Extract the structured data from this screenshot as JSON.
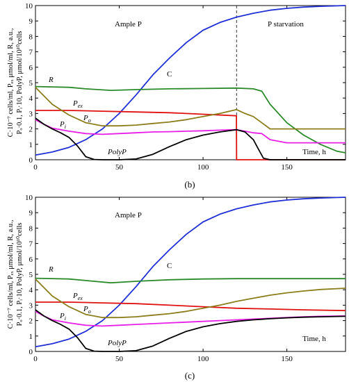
{
  "chart_data": [
    {
      "type": "line",
      "caption": "(b)",
      "ylabel_line1": "C·10⁻⁷ cells/ml, Pₑₓ μmol/ml, R, a.u.,",
      "ylabel_line2": "Pₒ·0.1, Pᵢ·10, PolyP, μmol/10¹⁰cells",
      "xlabel": "Time, h",
      "xlim": [
        0,
        185
      ],
      "ylim": [
        0,
        10
      ],
      "x_ticks": [
        0,
        50,
        100,
        150
      ],
      "y_ticks": [
        0,
        1,
        2,
        3,
        4,
        5,
        6,
        7,
        8,
        9,
        10
      ],
      "annotations": {
        "left": "Ample P",
        "right": "P starvation"
      },
      "switch_time": 120,
      "series": [
        {
          "name": "C",
          "color": "#1f2fd6",
          "x": [
            0,
            10,
            20,
            30,
            40,
            50,
            60,
            70,
            80,
            90,
            100,
            110,
            120,
            130,
            140,
            150,
            160,
            170,
            180,
            185
          ],
          "y": [
            0.3,
            0.5,
            0.8,
            1.3,
            2.0,
            3.0,
            4.2,
            5.5,
            6.6,
            7.6,
            8.4,
            8.9,
            9.25,
            9.5,
            9.7,
            9.82,
            9.9,
            9.95,
            9.98,
            10.0
          ]
        },
        {
          "name": "R",
          "color": "#2a8a2a",
          "x": [
            0,
            20,
            30,
            45,
            60,
            80,
            100,
            120,
            130,
            135,
            140,
            150,
            160,
            170,
            180,
            185
          ],
          "y": [
            4.75,
            4.7,
            4.6,
            4.5,
            4.55,
            4.6,
            4.62,
            4.65,
            4.6,
            4.45,
            3.6,
            2.4,
            1.6,
            1.0,
            0.55,
            0.45
          ]
        },
        {
          "name": "Pex",
          "color": "#e01010",
          "x": [
            0,
            20,
            40,
            60,
            80,
            100,
            119.9,
            120,
            185
          ],
          "y": [
            3.2,
            3.2,
            3.15,
            3.1,
            3.05,
            2.95,
            2.85,
            0.0,
            0.0
          ]
        },
        {
          "name": "Po",
          "color": "#8b7d1a",
          "x": [
            0,
            10,
            20,
            30,
            40,
            50,
            60,
            70,
            80,
            90,
            100,
            110,
            120,
            125,
            130,
            135,
            140,
            150,
            160,
            170,
            185
          ],
          "y": [
            4.7,
            3.6,
            2.9,
            2.4,
            2.2,
            2.2,
            2.25,
            2.35,
            2.45,
            2.6,
            2.8,
            3.0,
            3.25,
            3.0,
            2.8,
            2.4,
            2.0,
            2.0,
            2.0,
            2.0,
            2.0
          ]
        },
        {
          "name": "Pi",
          "color": "#e81ee8",
          "x": [
            0,
            5,
            10,
            20,
            30,
            40,
            50,
            60,
            70,
            80,
            90,
            100,
            110,
            120,
            125,
            130,
            135,
            140,
            150,
            160,
            170,
            185
          ],
          "y": [
            2.6,
            2.3,
            2.05,
            1.85,
            1.7,
            1.65,
            1.7,
            1.75,
            1.8,
            1.82,
            1.85,
            1.88,
            1.92,
            1.95,
            1.85,
            1.75,
            1.7,
            1.3,
            1.1,
            1.1,
            1.1,
            1.1
          ]
        },
        {
          "name": "PolyP",
          "color": "#000000",
          "x": [
            0,
            5,
            10,
            15,
            20,
            25,
            30,
            35,
            40,
            50,
            60,
            70,
            80,
            90,
            100,
            110,
            120,
            125,
            130,
            133,
            136,
            140,
            150,
            160,
            170,
            185
          ],
          "y": [
            2.7,
            2.3,
            2.0,
            1.75,
            1.45,
            0.9,
            0.2,
            0.02,
            0.0,
            0.0,
            0.05,
            0.35,
            0.85,
            1.3,
            1.6,
            1.8,
            1.95,
            1.8,
            1.3,
            0.7,
            0.1,
            0.0,
            0.0,
            0.0,
            0.0,
            0.0
          ]
        }
      ],
      "series_labels": {
        "C": "C",
        "R": "R",
        "Pex": "P",
        "Pex_sub": "ex",
        "Po": "P",
        "Po_sub": "o",
        "Pi": "P",
        "Pi_sub": "i",
        "PolyP": "PolyP"
      }
    },
    {
      "type": "line",
      "caption": "(c)",
      "ylabel_line1": "C·10⁻⁷ cells/ml, Pₑₓ μmol/ml, R, a.u.,",
      "ylabel_line2": "Pₒ·0.1, Pᵢ·10, PolyP, μmol/10¹⁰cells",
      "xlabel": "Time, h",
      "xlim": [
        0,
        185
      ],
      "ylim": [
        0,
        10
      ],
      "x_ticks": [
        0,
        50,
        100,
        150
      ],
      "y_ticks": [
        0,
        1,
        2,
        3,
        4,
        5,
        6,
        7,
        8,
        9,
        10
      ],
      "annotations": {
        "left": "Ample P"
      },
      "series": [
        {
          "name": "C",
          "color": "#1f2fd6",
          "x": [
            0,
            10,
            20,
            30,
            40,
            50,
            60,
            70,
            80,
            90,
            100,
            110,
            120,
            130,
            140,
            150,
            160,
            170,
            180,
            185
          ],
          "y": [
            0.3,
            0.5,
            0.8,
            1.3,
            2.0,
            3.0,
            4.2,
            5.5,
            6.6,
            7.6,
            8.4,
            8.9,
            9.25,
            9.5,
            9.7,
            9.82,
            9.9,
            9.95,
            9.98,
            10.0
          ]
        },
        {
          "name": "R",
          "color": "#2a8a2a",
          "x": [
            0,
            20,
            30,
            45,
            60,
            80,
            100,
            120,
            140,
            160,
            185
          ],
          "y": [
            4.75,
            4.7,
            4.6,
            4.45,
            4.55,
            4.65,
            4.7,
            4.72,
            4.72,
            4.72,
            4.72
          ]
        },
        {
          "name": "Pex",
          "color": "#e01010",
          "x": [
            0,
            20,
            40,
            60,
            80,
            100,
            120,
            140,
            160,
            185
          ],
          "y": [
            3.2,
            3.2,
            3.15,
            3.1,
            3.0,
            2.9,
            2.8,
            2.75,
            2.7,
            2.65
          ]
        },
        {
          "name": "Po",
          "color": "#8b7d1a",
          "x": [
            0,
            10,
            20,
            30,
            40,
            50,
            60,
            70,
            80,
            90,
            100,
            110,
            120,
            130,
            140,
            150,
            160,
            170,
            185
          ],
          "y": [
            4.7,
            3.6,
            2.9,
            2.4,
            2.2,
            2.2,
            2.25,
            2.35,
            2.45,
            2.6,
            2.8,
            3.0,
            3.25,
            3.45,
            3.65,
            3.8,
            3.92,
            4.02,
            4.1
          ]
        },
        {
          "name": "Pi",
          "color": "#e81ee8",
          "x": [
            0,
            5,
            10,
            20,
            30,
            40,
            50,
            60,
            70,
            80,
            90,
            100,
            110,
            120,
            130,
            140,
            150,
            160,
            170,
            185
          ],
          "y": [
            2.6,
            2.3,
            2.05,
            1.85,
            1.7,
            1.65,
            1.7,
            1.75,
            1.8,
            1.85,
            1.9,
            1.95,
            2.0,
            2.05,
            2.1,
            2.15,
            2.2,
            2.25,
            2.28,
            2.3
          ]
        },
        {
          "name": "PolyP",
          "color": "#000000",
          "x": [
            0,
            5,
            10,
            15,
            20,
            25,
            30,
            35,
            40,
            50,
            60,
            70,
            80,
            90,
            100,
            110,
            120,
            130,
            140,
            150,
            160,
            170,
            185
          ],
          "y": [
            2.7,
            2.3,
            2.0,
            1.75,
            1.45,
            0.9,
            0.2,
            0.02,
            0.0,
            0.0,
            0.05,
            0.35,
            0.85,
            1.3,
            1.6,
            1.8,
            1.95,
            2.05,
            2.12,
            2.18,
            2.22,
            2.25,
            2.28
          ]
        }
      ],
      "series_labels": {
        "C": "C",
        "R": "R",
        "Pex": "P",
        "Pex_sub": "ex",
        "Po": "P",
        "Po_sub": "o",
        "Pi": "P",
        "Pi_sub": "i",
        "PolyP": "PolyP"
      }
    }
  ]
}
